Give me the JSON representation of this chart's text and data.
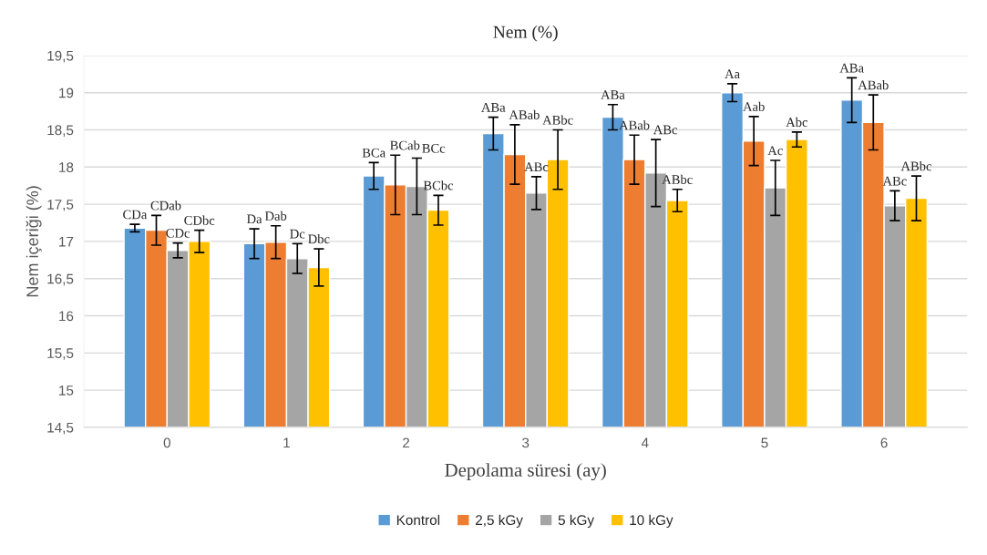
{
  "chart_data": {
    "type": "bar",
    "title": "Nem (%)",
    "xlabel": "Depolama süresi (ay)",
    "ylabel": "Nem içeriği (%)",
    "categories": [
      "0",
      "1",
      "2",
      "3",
      "4",
      "5",
      "6"
    ],
    "series": [
      {
        "name": "Kontrol",
        "color": "#5b9bd5",
        "values": [
          17.18,
          16.97,
          17.88,
          18.45,
          18.67,
          19.0,
          18.9
        ],
        "errors": [
          0.05,
          0.2,
          0.18,
          0.22,
          0.17,
          0.12,
          0.3
        ],
        "value_labels": [
          "CDa",
          "Da",
          "BCa",
          "ABa",
          "ABa",
          "Aa",
          "ABa"
        ]
      },
      {
        "name": "2,5 kGy",
        "color": "#ed7d31",
        "values": [
          17.15,
          16.99,
          17.76,
          18.17,
          18.1,
          18.35,
          18.6
        ],
        "errors": [
          0.2,
          0.22,
          0.4,
          0.4,
          0.33,
          0.33,
          0.37
        ],
        "value_labels": [
          "CDab",
          "Dab",
          "BCab",
          "ABab",
          "ABab",
          "Aab",
          "ABab"
        ]
      },
      {
        "name": "5 kGy",
        "color": "#a5a5a5",
        "values": [
          16.88,
          16.77,
          17.74,
          17.65,
          17.92,
          17.72,
          17.48
        ],
        "errors": [
          0.1,
          0.2,
          0.38,
          0.22,
          0.45,
          0.37,
          0.2
        ],
        "value_labels": [
          "CDc",
          "Dc",
          "BCc",
          "ABc",
          "ABc",
          "Ac",
          "ABc"
        ]
      },
      {
        "name": "10 kGy",
        "color": "#ffc000",
        "values": [
          17.0,
          16.65,
          17.42,
          18.1,
          17.55,
          18.37,
          17.58
        ],
        "errors": [
          0.15,
          0.25,
          0.2,
          0.4,
          0.15,
          0.1,
          0.3
        ],
        "value_labels": [
          "CDbc",
          "Dbc",
          "BCbc",
          "ABbc",
          "ABbc",
          "Abc",
          "ABbc"
        ]
      }
    ],
    "ylim": [
      14.5,
      19.5
    ],
    "yticks": [
      {
        "value": 14.5,
        "label": "14,5"
      },
      15,
      {
        "value": 15.5,
        "label": "15,5"
      },
      16,
      {
        "value": 16.5,
        "label": "16,5"
      },
      17,
      {
        "value": 17.5,
        "label": "17,5"
      },
      18,
      {
        "value": 18.5,
        "label": "18,5"
      },
      19,
      {
        "value": 19.5,
        "label": "19,5"
      }
    ],
    "grid": "y",
    "legend": "bottom"
  }
}
